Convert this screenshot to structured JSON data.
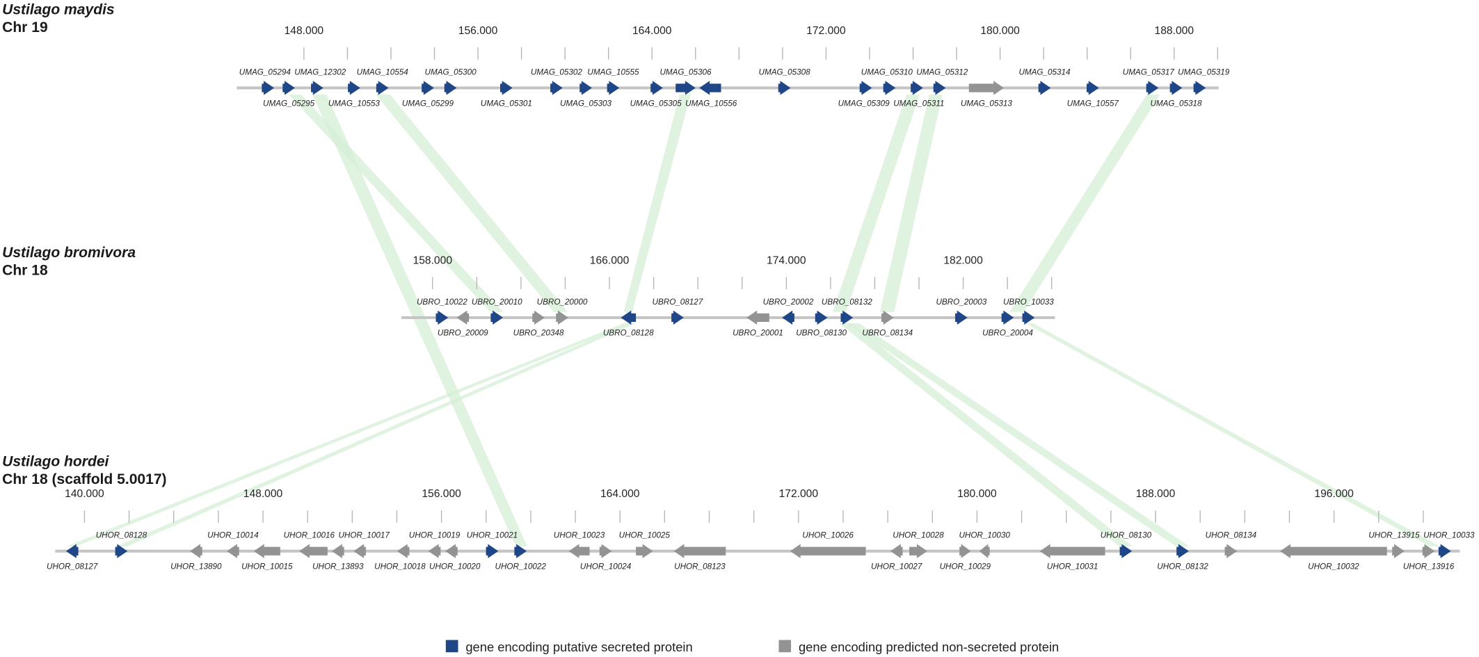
{
  "colors": {
    "secreted": "#1f4788",
    "non_secreted": "#939393",
    "backbone": "#c4c4c4",
    "synteny": "#d6eed6"
  },
  "tracks": [
    {
      "species": "Ustilago maydis",
      "chromosome": "Chr 19",
      "tick_labels": [
        "148.000",
        "156.000",
        "164.000",
        "172.000",
        "180.000",
        "188.000"
      ],
      "genes": [
        {
          "name": "UMAG_05294",
          "strand": "+",
          "type": "secreted"
        },
        {
          "name": "UMAG_05295",
          "strand": "+",
          "type": "secreted"
        },
        {
          "name": "UMAG_12302",
          "strand": "+",
          "type": "secreted"
        },
        {
          "name": "UMAG_10553",
          "strand": "+",
          "type": "secreted"
        },
        {
          "name": "UMAG_10554",
          "strand": "+",
          "type": "secreted"
        },
        {
          "name": "UMAG_05299",
          "strand": "+",
          "type": "secreted"
        },
        {
          "name": "UMAG_05300",
          "strand": "+",
          "type": "secreted"
        },
        {
          "name": "UMAG_05301",
          "strand": "+",
          "type": "secreted"
        },
        {
          "name": "UMAG_05302",
          "strand": "+",
          "type": "secreted"
        },
        {
          "name": "UMAG_05303",
          "strand": "+",
          "type": "secreted"
        },
        {
          "name": "UMAG_10555",
          "strand": "+",
          "type": "secreted"
        },
        {
          "name": "UMAG_05305",
          "strand": "+",
          "type": "secreted"
        },
        {
          "name": "UMAG_05306",
          "strand": "+",
          "type": "secreted"
        },
        {
          "name": "UMAG_10556",
          "strand": "-",
          "type": "secreted"
        },
        {
          "name": "UMAG_05308",
          "strand": "+",
          "type": "secreted"
        },
        {
          "name": "UMAG_05309",
          "strand": "+",
          "type": "secreted"
        },
        {
          "name": "UMAG_05310",
          "strand": "+",
          "type": "secreted"
        },
        {
          "name": "UMAG_05311",
          "strand": "+",
          "type": "secreted"
        },
        {
          "name": "UMAG_05312",
          "strand": "+",
          "type": "secreted"
        },
        {
          "name": "UMAG_05313",
          "strand": "+",
          "type": "non_secreted"
        },
        {
          "name": "UMAG_05314",
          "strand": "+",
          "type": "secreted"
        },
        {
          "name": "UMAG_10557",
          "strand": "+",
          "type": "secreted"
        },
        {
          "name": "UMAG_05317",
          "strand": "+",
          "type": "secreted"
        },
        {
          "name": "UMAG_05318",
          "strand": "+",
          "type": "secreted"
        },
        {
          "name": "UMAG_05319",
          "strand": "+",
          "type": "secreted"
        }
      ]
    },
    {
      "species": "Ustilago bromivora",
      "chromosome": "Chr 18",
      "tick_labels": [
        "158.000",
        "166.000",
        "174.000",
        "182.000"
      ],
      "genes": [
        {
          "name": "UBRO_10022",
          "strand": "+",
          "type": "secreted"
        },
        {
          "name": "UBRO_20009",
          "strand": "-",
          "type": "non_secreted"
        },
        {
          "name": "UBRO_20010",
          "strand": "+",
          "type": "secreted"
        },
        {
          "name": "UBRO_20348",
          "strand": "+",
          "type": "non_secreted"
        },
        {
          "name": "UBRO_20000",
          "strand": "+",
          "type": "non_secreted"
        },
        {
          "name": "UBRO_08128",
          "strand": "-",
          "type": "secreted"
        },
        {
          "name": "UBRO_08127",
          "strand": "+",
          "type": "secreted"
        },
        {
          "name": "UBRO_20001",
          "strand": "-",
          "type": "non_secreted"
        },
        {
          "name": "UBRO_20002",
          "strand": "-",
          "type": "secreted"
        },
        {
          "name": "UBRO_08130",
          "strand": "+",
          "type": "secreted"
        },
        {
          "name": "UBRO_08132",
          "strand": "+",
          "type": "secreted"
        },
        {
          "name": "UBRO_08134",
          "strand": "+",
          "type": "non_secreted"
        },
        {
          "name": "UBRO_20003",
          "strand": "+",
          "type": "secreted"
        },
        {
          "name": "UBRO_20004",
          "strand": "+",
          "type": "secreted"
        },
        {
          "name": "UBRO_10033",
          "strand": "+",
          "type": "secreted"
        }
      ]
    },
    {
      "species": "Ustilago hordei",
      "chromosome": "Chr 18 (scaffold 5.0017)",
      "tick_labels": [
        "140.000",
        "148.000",
        "156.000",
        "164.000",
        "172.000",
        "180.000",
        "188.000",
        "196.000"
      ],
      "genes": [
        {
          "name": "UHOR_08127",
          "strand": "-",
          "type": "secreted"
        },
        {
          "name": "UHOR_08128",
          "strand": "+",
          "type": "secreted"
        },
        {
          "name": "UHOR_13890",
          "strand": "-",
          "type": "non_secreted"
        },
        {
          "name": "UHOR_10014",
          "strand": "-",
          "type": "non_secreted"
        },
        {
          "name": "UHOR_10015",
          "strand": "-",
          "type": "non_secreted"
        },
        {
          "name": "UHOR_10016",
          "strand": "-",
          "type": "non_secreted"
        },
        {
          "name": "UHOR_13893",
          "strand": "-",
          "type": "non_secreted"
        },
        {
          "name": "UHOR_10017",
          "strand": "-",
          "type": "non_secreted"
        },
        {
          "name": "UHOR_10018",
          "strand": "-",
          "type": "non_secreted"
        },
        {
          "name": "UHOR_10019",
          "strand": "-",
          "type": "non_secreted"
        },
        {
          "name": "UHOR_10020",
          "strand": "-",
          "type": "non_secreted"
        },
        {
          "name": "UHOR_10021",
          "strand": "+",
          "type": "secreted"
        },
        {
          "name": "UHOR_10022",
          "strand": "+",
          "type": "secreted"
        },
        {
          "name": "UHOR_10023",
          "strand": "-",
          "type": "non_secreted"
        },
        {
          "name": "UHOR_10024",
          "strand": "+",
          "type": "non_secreted"
        },
        {
          "name": "UHOR_10025",
          "strand": "+",
          "type": "non_secreted"
        },
        {
          "name": "UHOR_08123",
          "strand": "-",
          "type": "non_secreted"
        },
        {
          "name": "UHOR_10026",
          "strand": "-",
          "type": "non_secreted"
        },
        {
          "name": "UHOR_10027",
          "strand": "-",
          "type": "non_secreted"
        },
        {
          "name": "UHOR_10028",
          "strand": "+",
          "type": "non_secreted"
        },
        {
          "name": "UHOR_10029",
          "strand": "+",
          "type": "non_secreted"
        },
        {
          "name": "UHOR_10030",
          "strand": "-",
          "type": "non_secreted"
        },
        {
          "name": "UHOR_10031",
          "strand": "-",
          "type": "non_secreted"
        },
        {
          "name": "UHOR_08130",
          "strand": "+",
          "type": "secreted"
        },
        {
          "name": "UHOR_08132",
          "strand": "+",
          "type": "secreted"
        },
        {
          "name": "UHOR_08134",
          "strand": "+",
          "type": "non_secreted"
        },
        {
          "name": "UHOR_10032",
          "strand": "-",
          "type": "non_secreted"
        },
        {
          "name": "UHOR_13915",
          "strand": "+",
          "type": "non_secreted"
        },
        {
          "name": "UHOR_13916",
          "strand": "+",
          "type": "non_secreted"
        },
        {
          "name": "UHOR_10033",
          "strand": "+",
          "type": "secreted"
        }
      ]
    }
  ],
  "legend": {
    "secreted_label": "gene encoding putative secreted protein",
    "non_secreted_label": "gene encoding predicted non-secreted protein"
  }
}
